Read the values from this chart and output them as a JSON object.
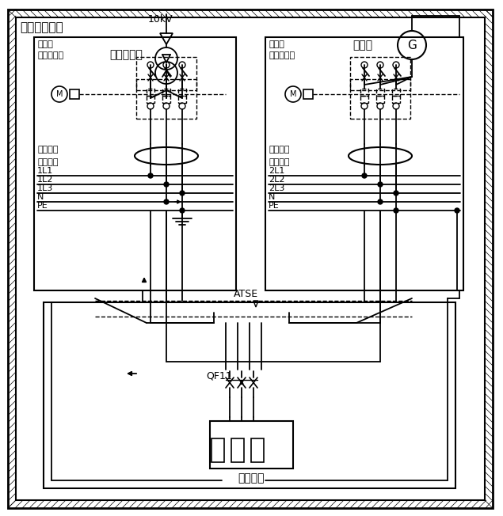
{
  "title": "同一座配电所",
  "label_10kV": "10kV",
  "label_transformer": "电力变压器",
  "label_generator": "发电机",
  "label_cb_left": [
    "变压器",
    "进线断路器"
  ],
  "label_cb_right": [
    "发电机",
    "进线断路器"
  ],
  "label_gfi_left": [
    "接地故障",
    "电流检测"
  ],
  "label_gfi_right": [
    "接地故障",
    "电流检测"
  ],
  "bus_labels_left": [
    "1L1",
    "1L2",
    "1L3",
    "N",
    "PE"
  ],
  "bus_labels_right": [
    "2L1",
    "2L2",
    "2L3",
    "N",
    "PE"
  ],
  "label_atse": "ATSE",
  "label_qf11": "QF11",
  "label_load": "用电设备",
  "bg_color": "#ffffff",
  "lc": "#000000",
  "fig_w": 6.35,
  "fig_h": 6.52,
  "dpi": 100
}
